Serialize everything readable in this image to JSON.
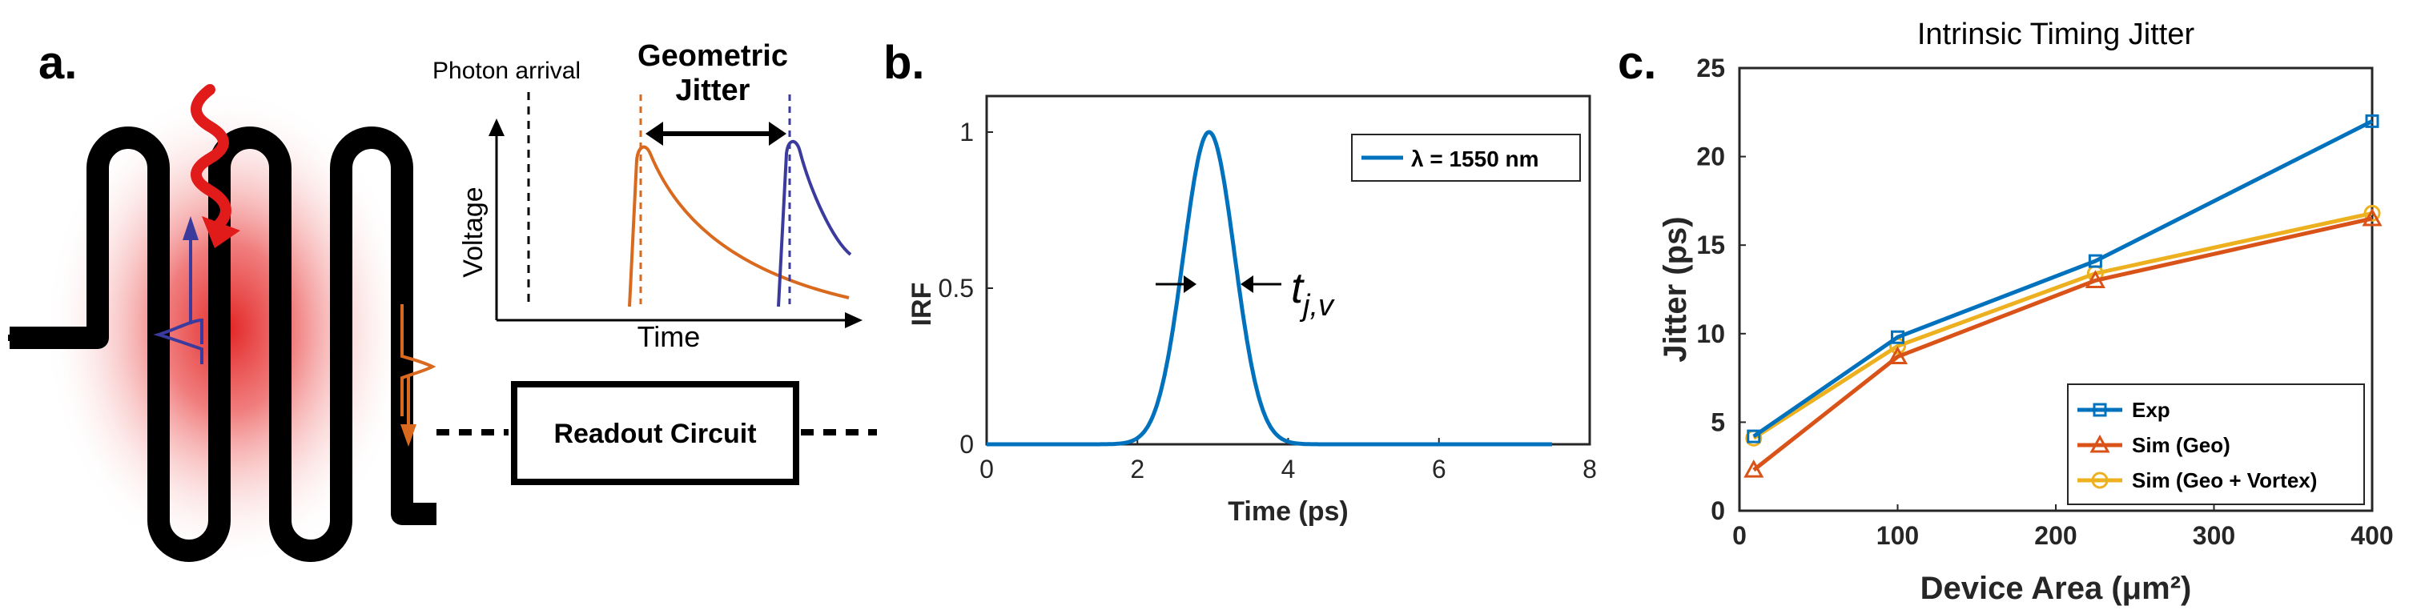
{
  "panels": {
    "a": {
      "label": "a.",
      "photon_arrival": "Photon arrival",
      "geometric_jitter_line1": "Geometric",
      "geometric_jitter_line2": "Jitter",
      "voltage_label": "Voltage",
      "time_label": "Time",
      "readout_label": "Readout Circuit"
    },
    "b": {
      "label": "b.",
      "fwhm_label": "t",
      "fwhm_sub": "j,v"
    },
    "c": {
      "label": "c."
    }
  },
  "colors": {
    "blue": "#0072bd",
    "orange": "#d95319",
    "yellow": "#edb120",
    "red_glow": "#e11a1a",
    "pulse_blue": "#3b3b9e",
    "pulse_orange": "#d9691e"
  },
  "chart_data": [
    {
      "type": "line",
      "title": "",
      "xlabel": "Time (ps)",
      "ylabel": "IRF",
      "xlim": [
        0,
        8
      ],
      "ylim": [
        0,
        1
      ],
      "xticks": [
        "0",
        "2",
        "4",
        "6",
        "8"
      ],
      "yticks": [
        "0",
        "0.5",
        "1"
      ],
      "legend": "top-right",
      "series": [
        {
          "name": "λ = 1550 nm",
          "type": "gaussian",
          "x_range": [
            0,
            7.5
          ],
          "mean": 2.95,
          "fwhm": 0.8,
          "peak": 1
        }
      ]
    },
    {
      "type": "line",
      "title": "Intrinsic Timing Jitter",
      "xlabel": "Device Area (μm²)",
      "ylabel": "Jitter (ps)",
      "xlim": [
        0,
        400
      ],
      "ylim": [
        0,
        25
      ],
      "xticks": [
        "0",
        "100",
        "200",
        "300",
        "400"
      ],
      "yticks": [
        "0",
        "5",
        "10",
        "15",
        "20",
        "25"
      ],
      "legend": "bottom-right",
      "x": [
        9,
        100,
        225,
        400
      ],
      "series": [
        {
          "name": "Exp",
          "marker": "square",
          "values": [
            4.2,
            9.8,
            14.1,
            22.0
          ]
        },
        {
          "name": "Sim (Geo)",
          "marker": "triangle",
          "values": [
            2.3,
            8.7,
            13.0,
            16.5
          ]
        },
        {
          "name": "Sim (Geo + Vortex)",
          "marker": "circle",
          "values": [
            4.1,
            9.3,
            13.4,
            16.8
          ]
        }
      ]
    }
  ]
}
